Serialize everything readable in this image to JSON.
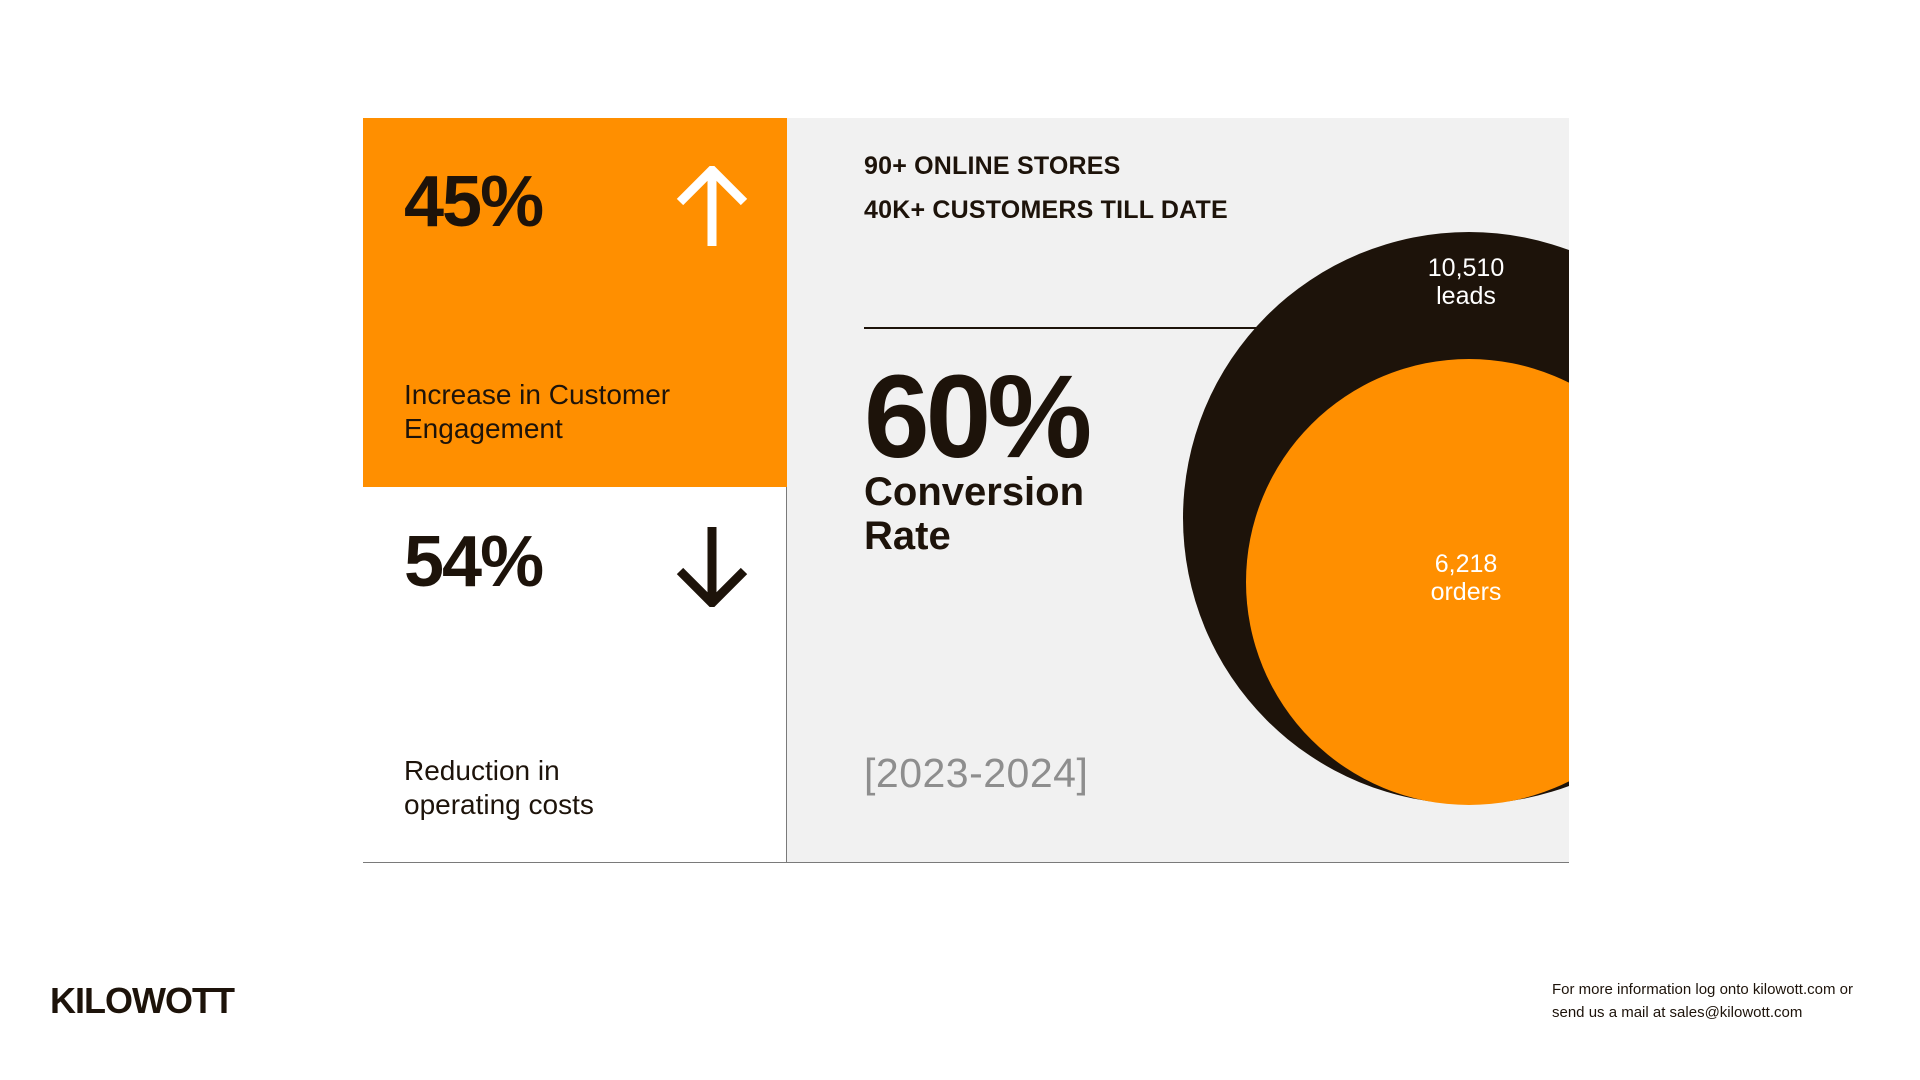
{
  "brand": {
    "name": "KILOWOTT",
    "accent_color": "#ff8f00",
    "dark_color": "#1d130a"
  },
  "engagement": {
    "value": "45%",
    "label_line1": "Increase in Customer",
    "label_line2": "Engagement",
    "icon": "arrow-up-icon"
  },
  "costs": {
    "value": "54%",
    "label_line1": "Reduction in",
    "label_line2": "operating costs",
    "icon": "arrow-down-icon"
  },
  "stats": {
    "stores": "90+ ONLINE STORES",
    "customers": "40K+ CUSTOMERS TILL DATE"
  },
  "conversion": {
    "value": "60%",
    "label_line1": "Conversion",
    "label_line2": "Rate",
    "period": "[2023-2024]"
  },
  "funnel": {
    "leads_value": "10,510",
    "leads_label": "leads",
    "orders_value": "6,218",
    "orders_label": "orders"
  },
  "footer": {
    "line1": "For more information log onto kilowott.com or",
    "line2": "send us a mail at sales@kilowott.com"
  }
}
